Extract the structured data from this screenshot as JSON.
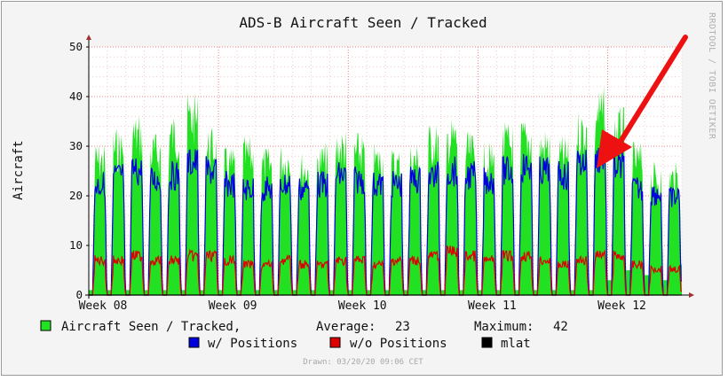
{
  "chart_data": {
    "type": "area",
    "title": "ADS-B Aircraft Seen / Tracked",
    "ylabel": "Aircraft",
    "ylim": [
      0,
      50
    ],
    "yticks": [
      "0",
      "10",
      "20",
      "30",
      "40",
      "50"
    ],
    "x_labels": [
      "Week 08",
      "Week 09",
      "Week 10",
      "Week 11",
      "Week 12"
    ],
    "grid": true,
    "legend_placement": "bottom",
    "days": 32,
    "series": [
      {
        "name": "Aircraft Seen / Tracked,",
        "color": "#22e022",
        "style": "area",
        "daily_peaks": [
          31,
          34,
          37,
          33,
          37,
          41,
          34,
          30,
          32,
          30,
          31,
          29,
          31,
          34,
          33,
          31,
          30,
          31,
          35,
          36,
          33,
          31,
          35,
          36,
          34,
          32,
          38,
          42,
          38,
          31,
          27,
          27
        ],
        "daily_troughs": [
          1,
          1,
          1,
          1,
          1,
          1,
          1,
          1,
          1,
          1,
          1,
          1,
          1,
          1,
          1,
          1,
          1,
          1,
          1,
          1,
          1,
          1,
          1,
          1,
          1,
          1,
          1,
          1,
          3,
          5,
          4,
          3
        ]
      },
      {
        "name": "w/ Positions",
        "color": "#0000dd",
        "style": "line",
        "daily_peaks": [
          25,
          27,
          28,
          26,
          27,
          30,
          28,
          25,
          24,
          24,
          25,
          24,
          25,
          27,
          26,
          25,
          25,
          26,
          27,
          28,
          27,
          26,
          28,
          29,
          28,
          27,
          30,
          31,
          29,
          24,
          23,
          22
        ]
      },
      {
        "name": "w/o Positions",
        "color": "#dd0000",
        "style": "line",
        "daily_peaks": [
          8,
          8,
          9,
          8,
          8,
          9,
          9,
          8,
          7,
          7,
          8,
          7,
          7,
          8,
          8,
          7,
          8,
          8,
          9,
          10,
          9,
          8,
          9,
          9,
          8,
          7,
          8,
          9,
          9,
          7,
          6,
          6
        ]
      },
      {
        "name": "mlat",
        "color": "#000000",
        "style": "line",
        "daily_peaks": [
          0,
          0,
          0,
          0,
          0,
          0,
          0,
          0,
          0,
          0,
          0,
          0,
          0,
          0,
          0,
          0,
          0,
          0,
          0,
          0,
          0,
          0,
          0,
          0,
          0,
          0,
          0,
          0,
          0,
          0,
          0,
          0
        ]
      }
    ],
    "summary": {
      "average_label": "Average:",
      "average_value": "23",
      "maximum_label": "Maximum:",
      "maximum_value": "42"
    },
    "watermark": "RRDTOOL / TOBI OETIKER",
    "drawn": "Drawn: 03/20/20 09:06 CET",
    "annotation": {
      "type": "arrow",
      "color": "#ee1111"
    }
  }
}
